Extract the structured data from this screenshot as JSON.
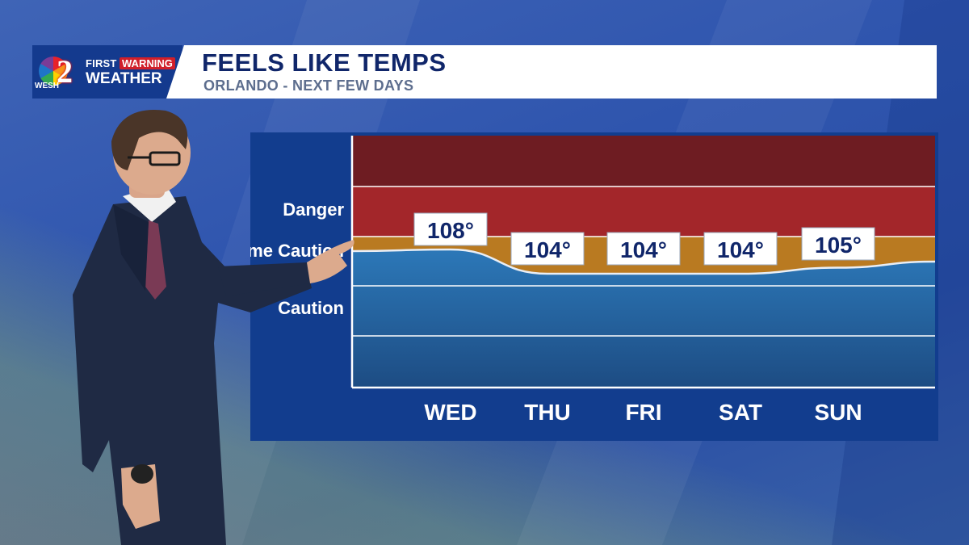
{
  "branding": {
    "logo_call_letters": "WESH",
    "logo_channel": "2",
    "logo_first": "FIRST",
    "logo_warning": "WARNING",
    "logo_weather": "WEATHER"
  },
  "header": {
    "title": "FEELS LIKE TEMPS",
    "subtitle": "ORLANDO - NEXT FEW DAYS"
  },
  "colors": {
    "band_extreme_danger": "#6e1c22",
    "band_danger": "#a3262a",
    "band_extreme_caution": "#b97a21",
    "band_caution_top": "#2a74b5",
    "band_caution_bottom": "#1f4f86",
    "label_box": "#ffffff",
    "label_text": "#10266a"
  },
  "chart_data": {
    "type": "area",
    "title": "FEELS LIKE TEMPS",
    "subtitle": "ORLANDO - NEXT FEW DAYS",
    "categories": [
      "WED",
      "THU",
      "FRI",
      "SAT",
      "SUN"
    ],
    "value_labels": [
      "108°",
      "104°",
      "104°",
      "104°",
      "105°"
    ],
    "values": [
      108,
      104,
      104,
      104,
      105
    ],
    "zones": [
      "Danger",
      "Extreme Caution",
      "Caution"
    ],
    "grid": true,
    "legend": "none"
  }
}
